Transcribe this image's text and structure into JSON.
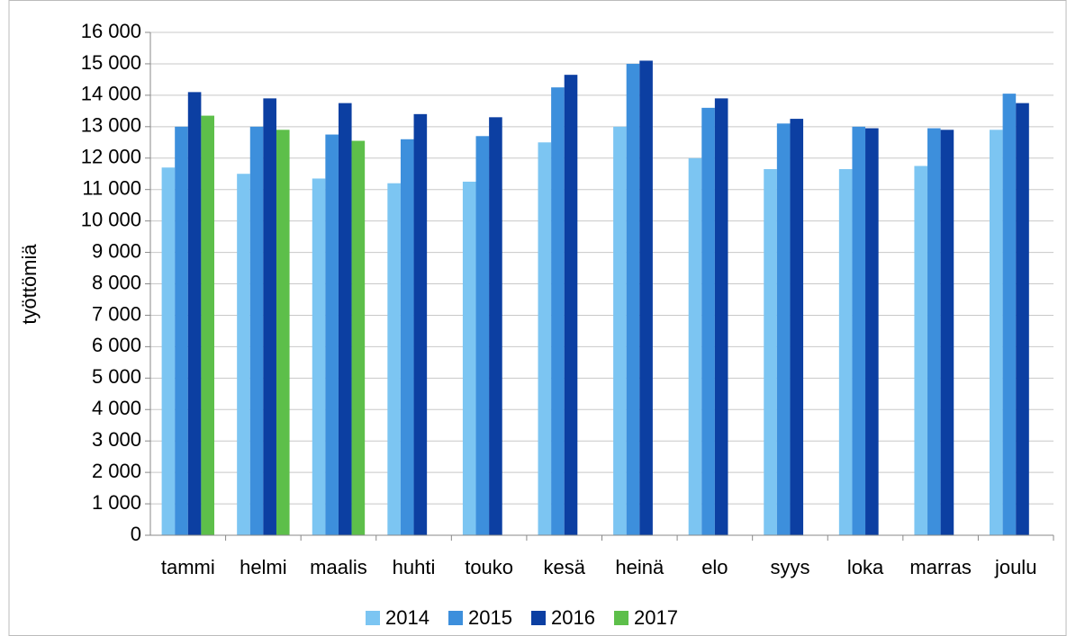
{
  "chart_data": {
    "type": "bar",
    "y_label": "työttömiä",
    "categories": [
      "tammi",
      "helmi",
      "maalis",
      "huhti",
      "touko",
      "kesä",
      "heinä",
      "elo",
      "syys",
      "loka",
      "marras",
      "joulu"
    ],
    "series": [
      {
        "name": "2014",
        "color": "#7cc5f2",
        "values": [
          11700,
          11500,
          11350,
          11200,
          11250,
          12500,
          13000,
          12000,
          11650,
          11650,
          11750,
          12900
        ]
      },
      {
        "name": "2015",
        "color": "#3d8fdc",
        "values": [
          13000,
          13000,
          12750,
          12600,
          12700,
          14250,
          15000,
          13600,
          13100,
          13000,
          12950,
          14050
        ]
      },
      {
        "name": "2016",
        "color": "#0c3fa2",
        "values": [
          14100,
          13900,
          13750,
          13400,
          13300,
          14650,
          15100,
          13900,
          13250,
          12950,
          12900,
          13750
        ]
      },
      {
        "name": "2017",
        "color": "#5dbf4a",
        "values": [
          13350,
          12900,
          12550,
          null,
          null,
          null,
          null,
          null,
          null,
          null,
          null,
          null
        ]
      }
    ],
    "ylim": [
      0,
      16000
    ],
    "yticks": [
      0,
      {
        "value": 1000,
        "label": "1 000"
      },
      {
        "value": 2000,
        "label": "2 000"
      },
      {
        "value": 3000,
        "label": "3 000"
      },
      {
        "value": 4000,
        "label": "4 000"
      },
      {
        "value": 5000,
        "label": "5 000"
      },
      {
        "value": 6000,
        "label": "6 000"
      },
      {
        "value": 7000,
        "label": "7 000"
      },
      {
        "value": 8000,
        "label": "8 000"
      },
      {
        "value": 9000,
        "label": "9 000"
      },
      {
        "value": 10000,
        "label": "10 000"
      },
      {
        "value": 11000,
        "label": "11 000"
      },
      {
        "value": 12000,
        "label": "12 000"
      },
      {
        "value": 13000,
        "label": "13 000"
      },
      {
        "value": 14000,
        "label": "14 000"
      },
      {
        "value": 15000,
        "label": "15 000"
      },
      {
        "value": 16000,
        "label": "16 000"
      }
    ],
    "grid": true,
    "legend": "bottom"
  }
}
